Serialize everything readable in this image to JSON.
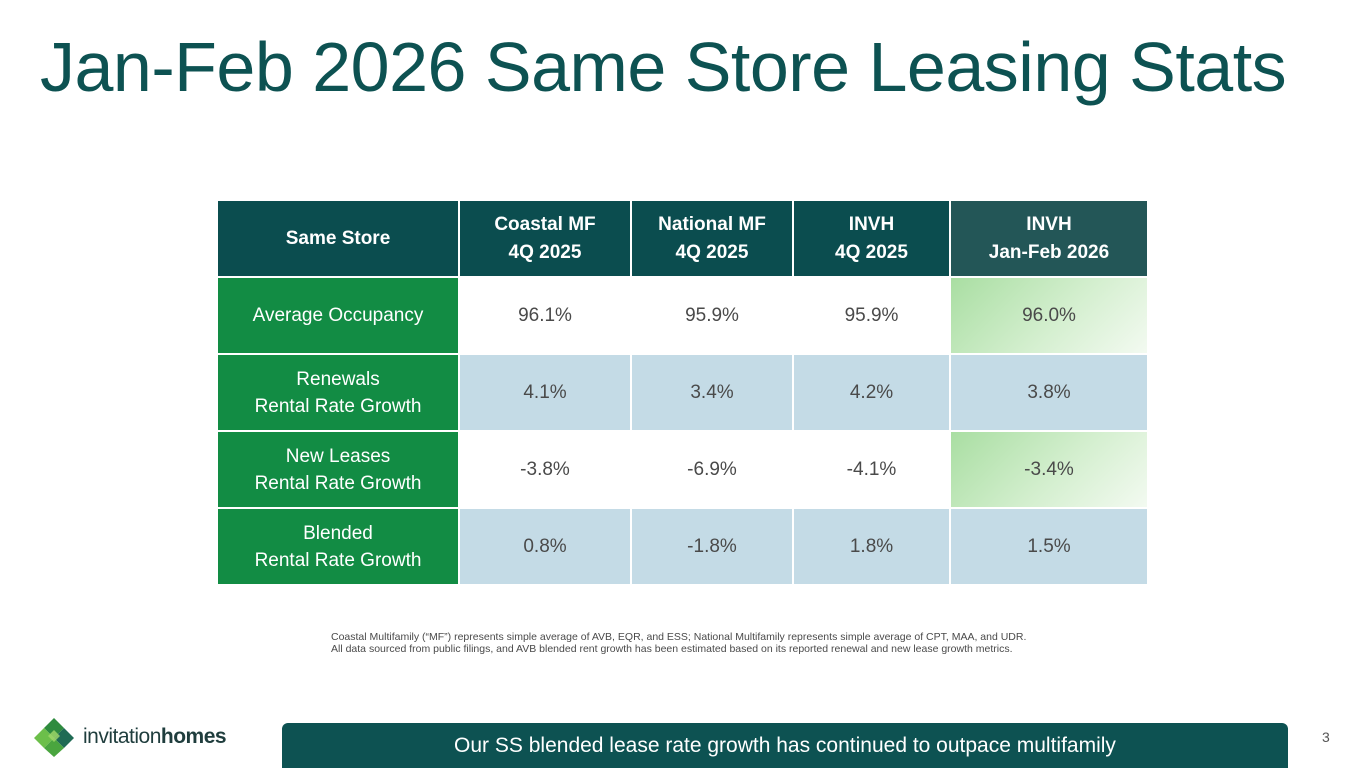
{
  "title": "Jan-Feb 2026 Same Store Leasing Stats",
  "table": {
    "headers": [
      {
        "line1": "Same Store",
        "line2": ""
      },
      {
        "line1": "Coastal MF",
        "line2": "4Q 2025"
      },
      {
        "line1": "National MF",
        "line2": "4Q 2025"
      },
      {
        "line1": "INVH",
        "line2": "4Q 2025"
      },
      {
        "line1": "INVH",
        "line2": "Jan-Feb 2026"
      }
    ],
    "rows": [
      {
        "label1": "Average Occupancy",
        "label2": "",
        "values": [
          "96.1%",
          "95.9%",
          "95.9%",
          "96.0%"
        ]
      },
      {
        "label1": "Renewals",
        "label2": "Rental Rate Growth",
        "values": [
          "4.1%",
          "3.4%",
          "4.2%",
          "3.8%"
        ]
      },
      {
        "label1": "New Leases",
        "label2": "Rental Rate Growth",
        "values": [
          "-3.8%",
          "-6.9%",
          "-4.1%",
          "-3.4%"
        ]
      },
      {
        "label1": "Blended",
        "label2": "Rental Rate Growth",
        "values": [
          "0.8%",
          "-1.8%",
          "1.8%",
          "1.5%"
        ]
      }
    ]
  },
  "footnote": {
    "line1": "Coastal Multifamily (“MF”) represents simple average of AVB, EQR, and ESS; National Multifamily represents simple average of CPT, MAA, and UDR.",
    "line2": "All data sourced from public filings, and AVB blended rent growth has been estimated based on its reported renewal and new lease growth metrics."
  },
  "logo": {
    "part1": "invitation",
    "part2": "homes"
  },
  "banner": "Our SS blended lease rate growth has continued to outpace multifamily",
  "page_number": "3",
  "colors": {
    "title": "#0d5252",
    "header_bg": "#0b4d4f",
    "row_label_bg": "#128c44",
    "shaded_row": "#c4dbe6",
    "highlight": "#a9dea2"
  }
}
